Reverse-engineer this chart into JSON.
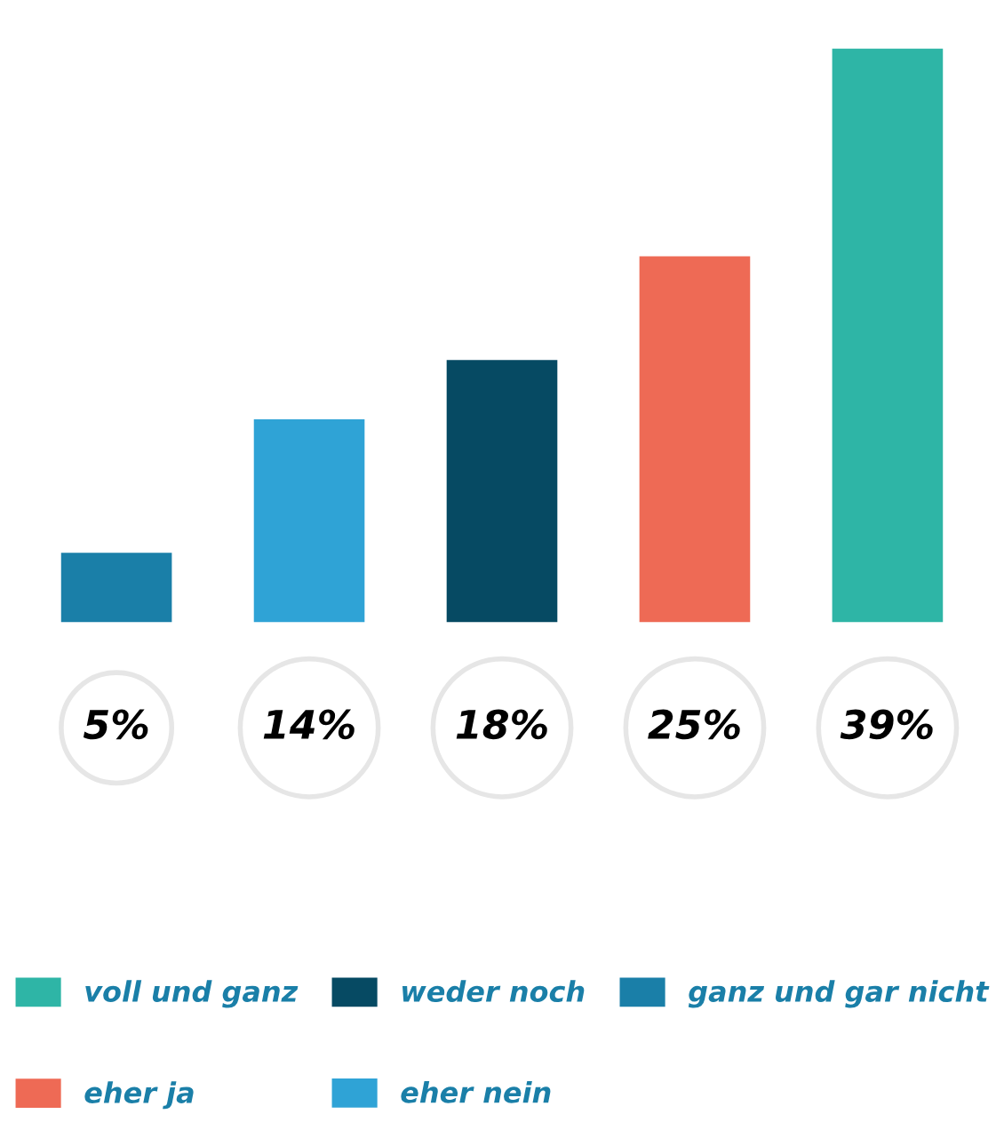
{
  "chart_data": {
    "type": "bar",
    "stacked": true,
    "categories": [
      null,
      null,
      null,
      null,
      null
    ],
    "series": [
      {
        "name": "voll und ganz",
        "color": "#2eb5a6",
        "values": [
          null,
          null,
          null,
          null,
          39
        ],
        "value_labels": [
          null,
          null,
          null,
          null,
          "39%"
        ]
      },
      {
        "name": "weder noch",
        "color": "#064a63",
        "values": [
          null,
          null,
          18,
          null,
          null
        ],
        "value_labels": [
          null,
          null,
          "18%",
          null,
          null
        ]
      },
      {
        "name": "ganz und gar nicht",
        "color": "#1a7fa8",
        "values": [
          5,
          null,
          null,
          null,
          null
        ],
        "value_labels": [
          "5%",
          null,
          null,
          null,
          null
        ]
      },
      {
        "name": "eher ja",
        "color": "#ee6a55",
        "values": [
          null,
          null,
          null,
          25,
          null
        ],
        "value_labels": [
          null,
          null,
          null,
          "25%",
          null
        ]
      },
      {
        "name": "eher nein",
        "color": "#2fa3d6",
        "values": [
          null,
          14,
          null,
          null,
          null
        ],
        "value_labels": [
          null,
          "14%",
          null,
          null,
          null
        ]
      }
    ],
    "legend": "bottom",
    "grid": false
  }
}
